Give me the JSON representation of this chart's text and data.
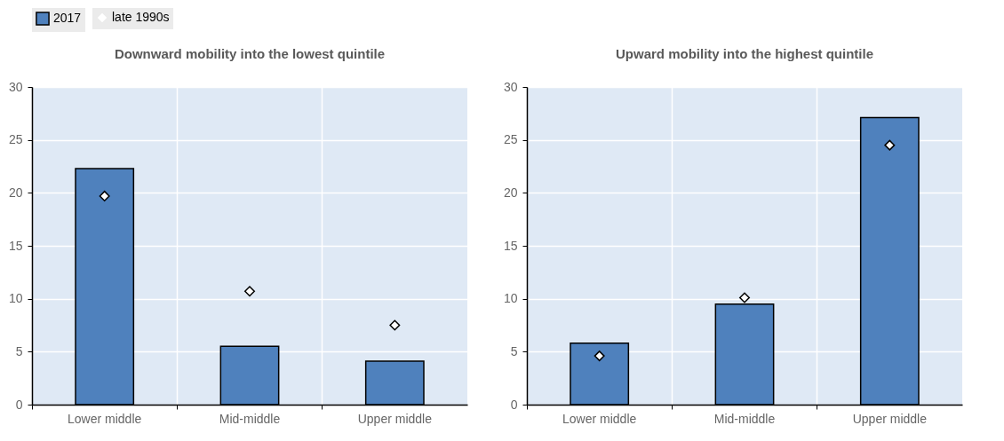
{
  "chart_data": [
    {
      "type": "bar",
      "title": "Downward mobility into the lowest quintile",
      "categories": [
        "Lower middle",
        "Mid-middle",
        "Upper middle"
      ],
      "series": [
        {
          "name": "2017",
          "color": "#4f81bd",
          "values": [
            22.3,
            5.5,
            4.1
          ]
        },
        {
          "name": "late 1990s",
          "type": "scatter",
          "color": "#ffffff",
          "x": [
            "Lower middle",
            "Mid-middle",
            "Upper middle"
          ],
          "values": [
            19.7,
            10.7,
            7.5
          ]
        }
      ],
      "marker": "diamond",
      "ylim": [
        0,
        30
      ],
      "yticks": [
        0,
        5,
        10,
        15,
        20,
        25,
        30
      ],
      "grid": true,
      "legend": "top"
    },
    {
      "type": "bar",
      "title": "Upward mobility into the highest quintile",
      "categories": [
        "Lower middle",
        "Mid-middle",
        "Upper middle"
      ],
      "series": [
        {
          "name": "2017",
          "color": "#4f81bd",
          "values": [
            5.8,
            9.5,
            27.1
          ]
        },
        {
          "name": "late 1990s",
          "type": "scatter",
          "color": "#ffffff",
          "x": [
            "Lower middle",
            "Mid-middle",
            "Upper middle"
          ],
          "values": [
            4.6,
            10.1,
            24.5
          ]
        }
      ],
      "marker": "diamond",
      "ylim": [
        0,
        30
      ],
      "yticks": [
        0,
        5,
        10,
        15,
        20,
        25,
        30
      ],
      "grid": true,
      "legend": "top"
    }
  ]
}
